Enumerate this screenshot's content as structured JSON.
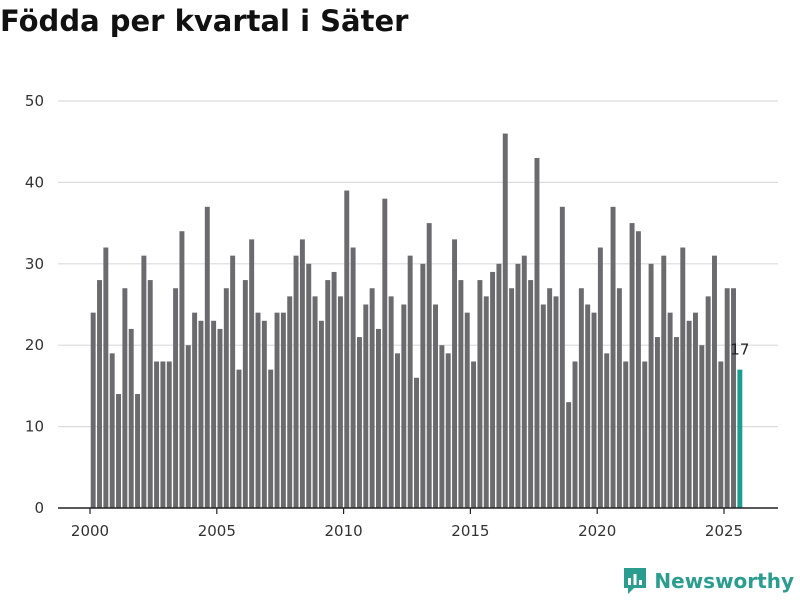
{
  "title": "Födda per kvartal i Säter",
  "brand": {
    "name": "Newsworthy"
  },
  "colors": {
    "bar": "#6b6b6e",
    "highlight": "#1b9e90",
    "grid": "#dcdcdc",
    "axis": "#222222",
    "brand": "#2a9d8f"
  },
  "chart_data": {
    "type": "bar",
    "title": "Födda per kvartal i Säter",
    "xlabel": "",
    "ylabel": "",
    "ylim": [
      0,
      50
    ],
    "yticks": [
      0,
      10,
      20,
      30,
      40,
      50
    ],
    "xticks": [
      2000,
      2005,
      2010,
      2015,
      2020,
      2025
    ],
    "x_start_year": 2000,
    "period": "quarter",
    "highlight_last": true,
    "last_label": "17",
    "values": [
      24,
      28,
      32,
      19,
      14,
      27,
      22,
      14,
      31,
      28,
      18,
      18,
      18,
      27,
      34,
      20,
      24,
      23,
      37,
      23,
      22,
      27,
      31,
      17,
      28,
      33,
      24,
      23,
      17,
      24,
      24,
      26,
      31,
      33,
      30,
      26,
      23,
      28,
      29,
      26,
      39,
      32,
      21,
      25,
      27,
      22,
      38,
      26,
      19,
      25,
      31,
      16,
      30,
      35,
      25,
      20,
      19,
      33,
      28,
      24,
      18,
      28,
      26,
      29,
      30,
      46,
      27,
      30,
      31,
      28,
      43,
      25,
      27,
      26,
      37,
      13,
      18,
      27,
      25,
      24,
      32,
      19,
      37,
      27,
      18,
      35,
      34,
      18,
      30,
      21,
      31,
      24,
      21,
      32,
      23,
      24,
      20,
      26,
      31,
      18,
      27,
      27,
      17
    ]
  }
}
